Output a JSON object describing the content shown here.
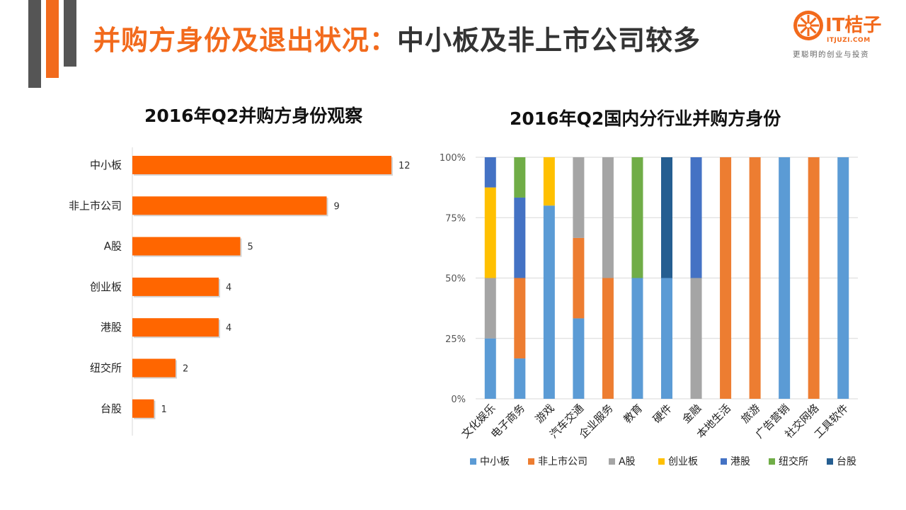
{
  "slide": {
    "title_part1": "并购方身份及退出状况：",
    "title_part2": "中小板及非上市公司较多"
  },
  "logo": {
    "brand": "IT桔子",
    "url": "ITJUZI.COM",
    "slogan": "更聪明的创业与投资"
  },
  "colors": {
    "accent": "#f26a1c",
    "bar": "#ff6600",
    "gray_bar": "#555555"
  },
  "chart_data": [
    {
      "type": "bar",
      "orientation": "horizontal",
      "title": "2016年Q2并购方身份观察",
      "categories": [
        "中小板",
        "非上市公司",
        "A股",
        "创业板",
        "港股",
        "纽交所",
        "台股"
      ],
      "values": [
        12,
        9,
        5,
        4,
        4,
        2,
        1
      ],
      "xlim": [
        0,
        12
      ]
    },
    {
      "type": "bar",
      "stacked": "percent",
      "title": "2016年Q2国内分行业并购方身份",
      "categories": [
        "文化娱乐",
        "电子商务",
        "游戏",
        "汽车交通",
        "企业服务",
        "教育",
        "硬件",
        "金融",
        "本地生活",
        "旅游",
        "广告营销",
        "社交网络",
        "工具软件"
      ],
      "y_ticks": [
        "0%",
        "25%",
        "50%",
        "75%",
        "100%"
      ],
      "ylim": [
        0,
        100
      ],
      "legend_position": "bottom",
      "series": [
        {
          "name": "中小板",
          "color": "#5b9bd5",
          "values": [
            25,
            16.7,
            80,
            33.3,
            0,
            50,
            50,
            0,
            0,
            0,
            100,
            0,
            100
          ]
        },
        {
          "name": "非上市公司",
          "color": "#ed7d31",
          "values": [
            0,
            33.3,
            0,
            33.3,
            50,
            0,
            0,
            0,
            100,
            100,
            0,
            100,
            0
          ]
        },
        {
          "name": "A股",
          "color": "#a5a5a5",
          "values": [
            25,
            0,
            0,
            33.4,
            50,
            0,
            0,
            50,
            0,
            0,
            0,
            0,
            0
          ]
        },
        {
          "name": "创业板",
          "color": "#ffc000",
          "values": [
            37.5,
            0,
            20,
            0,
            0,
            0,
            0,
            0,
            0,
            0,
            0,
            0,
            0
          ]
        },
        {
          "name": "港股",
          "color": "#4472c4",
          "values": [
            12.5,
            33.3,
            0,
            0,
            0,
            0,
            0,
            50,
            0,
            0,
            0,
            0,
            0
          ]
        },
        {
          "name": "纽交所",
          "color": "#70ad47",
          "values": [
            0,
            16.7,
            0,
            0,
            0,
            50,
            0,
            0,
            0,
            0,
            0,
            0,
            0
          ]
        },
        {
          "name": "台股",
          "color": "#255e91",
          "values": [
            0,
            0,
            0,
            0,
            0,
            0,
            50,
            0,
            0,
            0,
            0,
            0,
            0
          ]
        }
      ]
    }
  ]
}
